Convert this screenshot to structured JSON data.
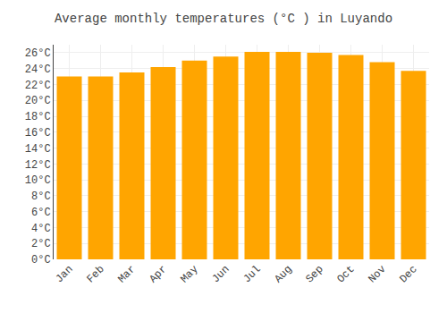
{
  "chart_data": {
    "type": "bar",
    "title": "Average monthly temperatures (°C ) in Luyando",
    "categories": [
      "Jan",
      "Feb",
      "Mar",
      "Apr",
      "May",
      "Jun",
      "Jul",
      "Aug",
      "Sep",
      "Oct",
      "Nov",
      "Dec"
    ],
    "values": [
      23.0,
      23.0,
      23.5,
      24.2,
      25.0,
      25.5,
      26.1,
      26.1,
      26.0,
      25.7,
      24.8,
      23.7
    ],
    "color": "#FFA500",
    "ylim": [
      0,
      27
    ],
    "yticks": [
      {
        "value": 0,
        "label": "0°C"
      },
      {
        "value": 2,
        "label": "2°C"
      },
      {
        "value": 4,
        "label": "4°C"
      },
      {
        "value": 6,
        "label": "6°C"
      },
      {
        "value": 8,
        "label": "8°C"
      },
      {
        "value": 10,
        "label": "10°C"
      },
      {
        "value": 12,
        "label": "12°C"
      },
      {
        "value": 14,
        "label": "14°C"
      },
      {
        "value": 16,
        "label": "16°C"
      },
      {
        "value": 18,
        "label": "18°C"
      },
      {
        "value": 20,
        "label": "20°C"
      },
      {
        "value": 22,
        "label": "22°C"
      },
      {
        "value": 24,
        "label": "24°C"
      },
      {
        "value": 26,
        "label": "26°C"
      }
    ],
    "grid": true
  }
}
